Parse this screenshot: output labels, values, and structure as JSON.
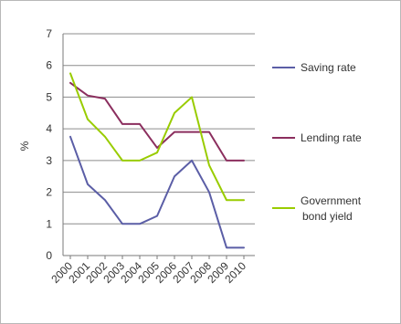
{
  "chart_data": {
    "type": "line",
    "title": "",
    "xlabel": "",
    "ylabel": "%",
    "ylim": [
      0,
      7
    ],
    "yticks": [
      "0",
      "1",
      "2",
      "3",
      "4",
      "5",
      "6",
      "7"
    ],
    "grid": "horizontal",
    "legend_position": "right",
    "categories": [
      "2000",
      "2001",
      "2002",
      "2003",
      "2004",
      "2005",
      "2006",
      "2007",
      "2008",
      "2009",
      "2010"
    ],
    "series": [
      {
        "name": "Saving rate",
        "color": "#5b5ea6",
        "values": [
          3.75,
          2.25,
          1.75,
          1.0,
          1.0,
          1.25,
          2.5,
          3.0,
          2.0,
          0.25,
          0.25
        ]
      },
      {
        "name": "Lending rate",
        "color": "#8b2e5e",
        "values": [
          5.45,
          5.05,
          4.95,
          4.15,
          4.15,
          3.4,
          3.9,
          3.9,
          3.9,
          3.0,
          3.0
        ]
      },
      {
        "name": "Government bond yield",
        "color": "#99cc00",
        "values": [
          5.75,
          4.3,
          3.75,
          3.0,
          3.0,
          3.25,
          4.5,
          5.0,
          2.85,
          1.75,
          1.75
        ]
      }
    ]
  },
  "legend": {
    "saving": [
      "Saving rate"
    ],
    "lending": [
      "Lending rate"
    ],
    "bond": [
      "Government",
      "bond yield"
    ]
  }
}
